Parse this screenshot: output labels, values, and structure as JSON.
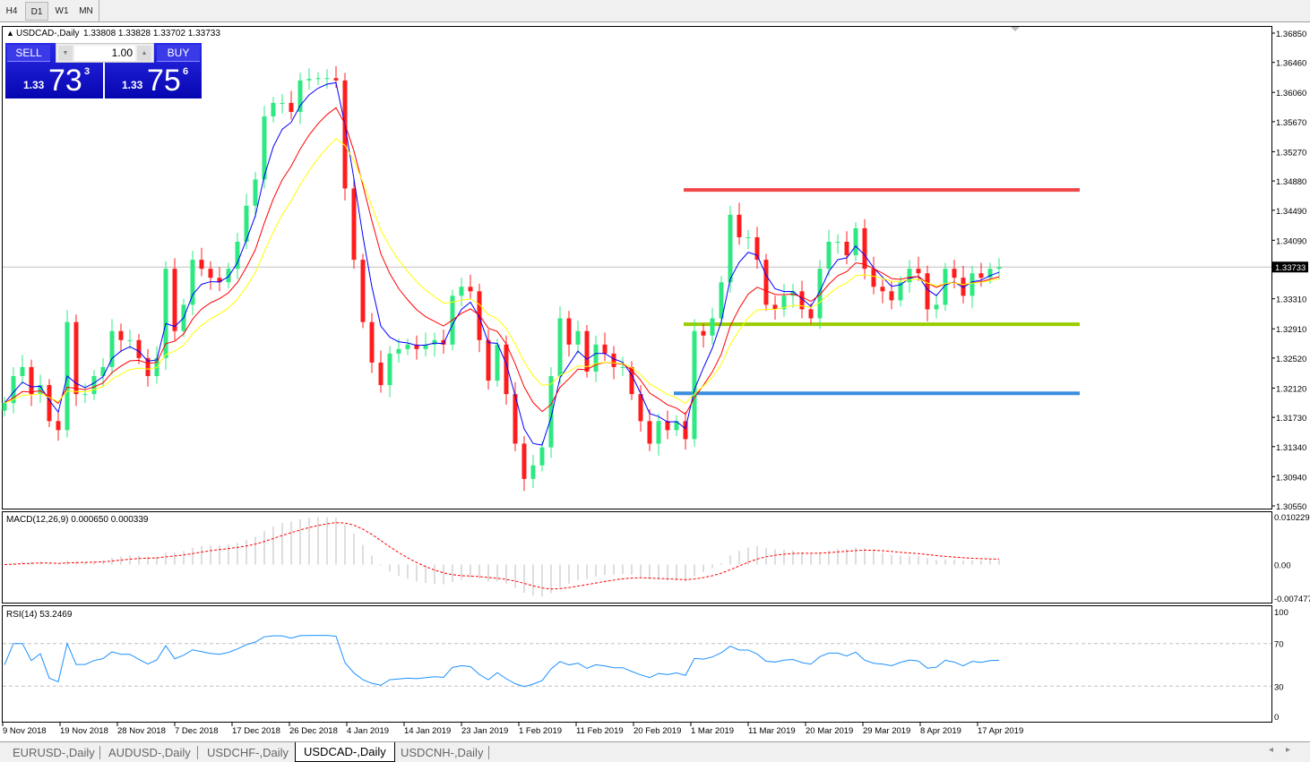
{
  "toolbar": {
    "timeframes": [
      "H4",
      "D1",
      "W1",
      "MN"
    ],
    "active": "D1"
  },
  "header": {
    "symbol": "USDCAD-,Daily",
    "ohlc": "1.33808 1.33828 1.33702 1.33733"
  },
  "trade": {
    "sell_label": "SELL",
    "buy_label": "BUY",
    "lots": "1.00",
    "sell": {
      "prefix": "1.33",
      "big": "73",
      "sup": "3"
    },
    "buy": {
      "prefix": "1.33",
      "big": "75",
      "sup": "6"
    }
  },
  "macd": {
    "label": "MACD(12,26,9) 0.000650 0.000339",
    "axis": [
      "0.010229",
      "0.00",
      "-0.007477"
    ],
    "range": [
      -0.007477,
      0.010229
    ]
  },
  "rsi": {
    "label": "RSI(14) 53.2469",
    "axis": [
      "100",
      "70",
      "30",
      "0"
    ],
    "levels": [
      70,
      30
    ]
  },
  "tabs": [
    "EURUSD-,Daily",
    "AUDUSD-,Daily",
    "USDCHF-,Daily",
    "USDCAD-,Daily",
    "USDCNH-,Daily"
  ],
  "active_tab": "USDCAD-,Daily",
  "colors": {
    "bull": "#2ee882",
    "bear": "#ff1c1c",
    "ma_fast": "#0000ff",
    "ma_mid": "#ff0000",
    "ma_slow": "#ffff00",
    "resistance": "#f04848",
    "support": "#9acd00",
    "support2": "#3a8ee0"
  },
  "chart_data": {
    "type": "candlestick",
    "price_axis": [
      "1.36850",
      "1.36460",
      "1.36060",
      "1.35670",
      "1.35270",
      "1.34880",
      "1.34490",
      "1.34090",
      "1.33310",
      "1.32910",
      "1.32520",
      "1.32120",
      "1.31730",
      "1.31340",
      "1.30940",
      "1.30550"
    ],
    "ylim": [
      1.3055,
      1.3685
    ],
    "current_price": "1.33733",
    "date_labels": [
      "9 Nov 2018",
      "19 Nov 2018",
      "28 Nov 2018",
      "7 Dec 2018",
      "17 Dec 2018",
      "26 Dec 2018",
      "4 Jan 2019",
      "14 Jan 2019",
      "23 Jan 2019",
      "1 Feb 2019",
      "11 Feb 2019",
      "20 Feb 2019",
      "1 Mar 2019",
      "11 Mar 2019",
      "20 Mar 2019",
      "29 Mar 2019",
      "8 Apr 2019",
      "17 Apr 2019"
    ],
    "closes": [
      1.3192,
      1.3228,
      1.324,
      1.3204,
      1.3216,
      1.3168,
      1.3156,
      1.33,
      1.3204,
      1.3204,
      1.3228,
      1.324,
      1.3288,
      1.3276,
      1.3276,
      1.3252,
      1.3228,
      1.3252,
      1.3371,
      1.3288,
      1.3323,
      1.3383,
      1.3371,
      1.3359,
      1.3353,
      1.3371,
      1.3407,
      1.3455,
      1.349,
      1.3574,
      1.3592,
      1.3592,
      1.358,
      1.3622,
      1.3624,
      1.3625,
      1.3625,
      1.3622,
      1.3478,
      1.3383,
      1.33,
      1.3246,
      1.3216,
      1.3258,
      1.3264,
      1.327,
      1.3264,
      1.327,
      1.3276,
      1.327,
      1.3335,
      1.3347,
      1.3341,
      1.3276,
      1.3222,
      1.327,
      1.3204,
      1.3138,
      1.3091,
      1.3109,
      1.3133,
      1.3228,
      1.3305,
      1.327,
      1.3288,
      1.3234,
      1.327,
      1.3258,
      1.324,
      1.324,
      1.3204,
      1.3168,
      1.3138,
      1.3168,
      1.3156,
      1.3168,
      1.3144,
      1.3288,
      1.3282,
      1.3305,
      1.3353,
      1.3443,
      1.3413,
      1.3413,
      1.3383,
      1.3323,
      1.3317,
      1.3335,
      1.3341,
      1.3317,
      1.3305,
      1.3371,
      1.3407,
      1.3407,
      1.3389,
      1.3425,
      1.3371,
      1.3347,
      1.3341,
      1.3329,
      1.3353,
      1.3371,
      1.3365,
      1.3317,
      1.3323,
      1.3371,
      1.3359,
      1.3335,
      1.3365,
      1.3359,
      1.3371,
      1.3373
    ],
    "horizontal_lines": [
      {
        "price": 1.3476,
        "color": "resistance"
      },
      {
        "price": 1.3297,
        "color": "support"
      },
      {
        "price": 1.3205,
        "color": "support2"
      }
    ]
  }
}
